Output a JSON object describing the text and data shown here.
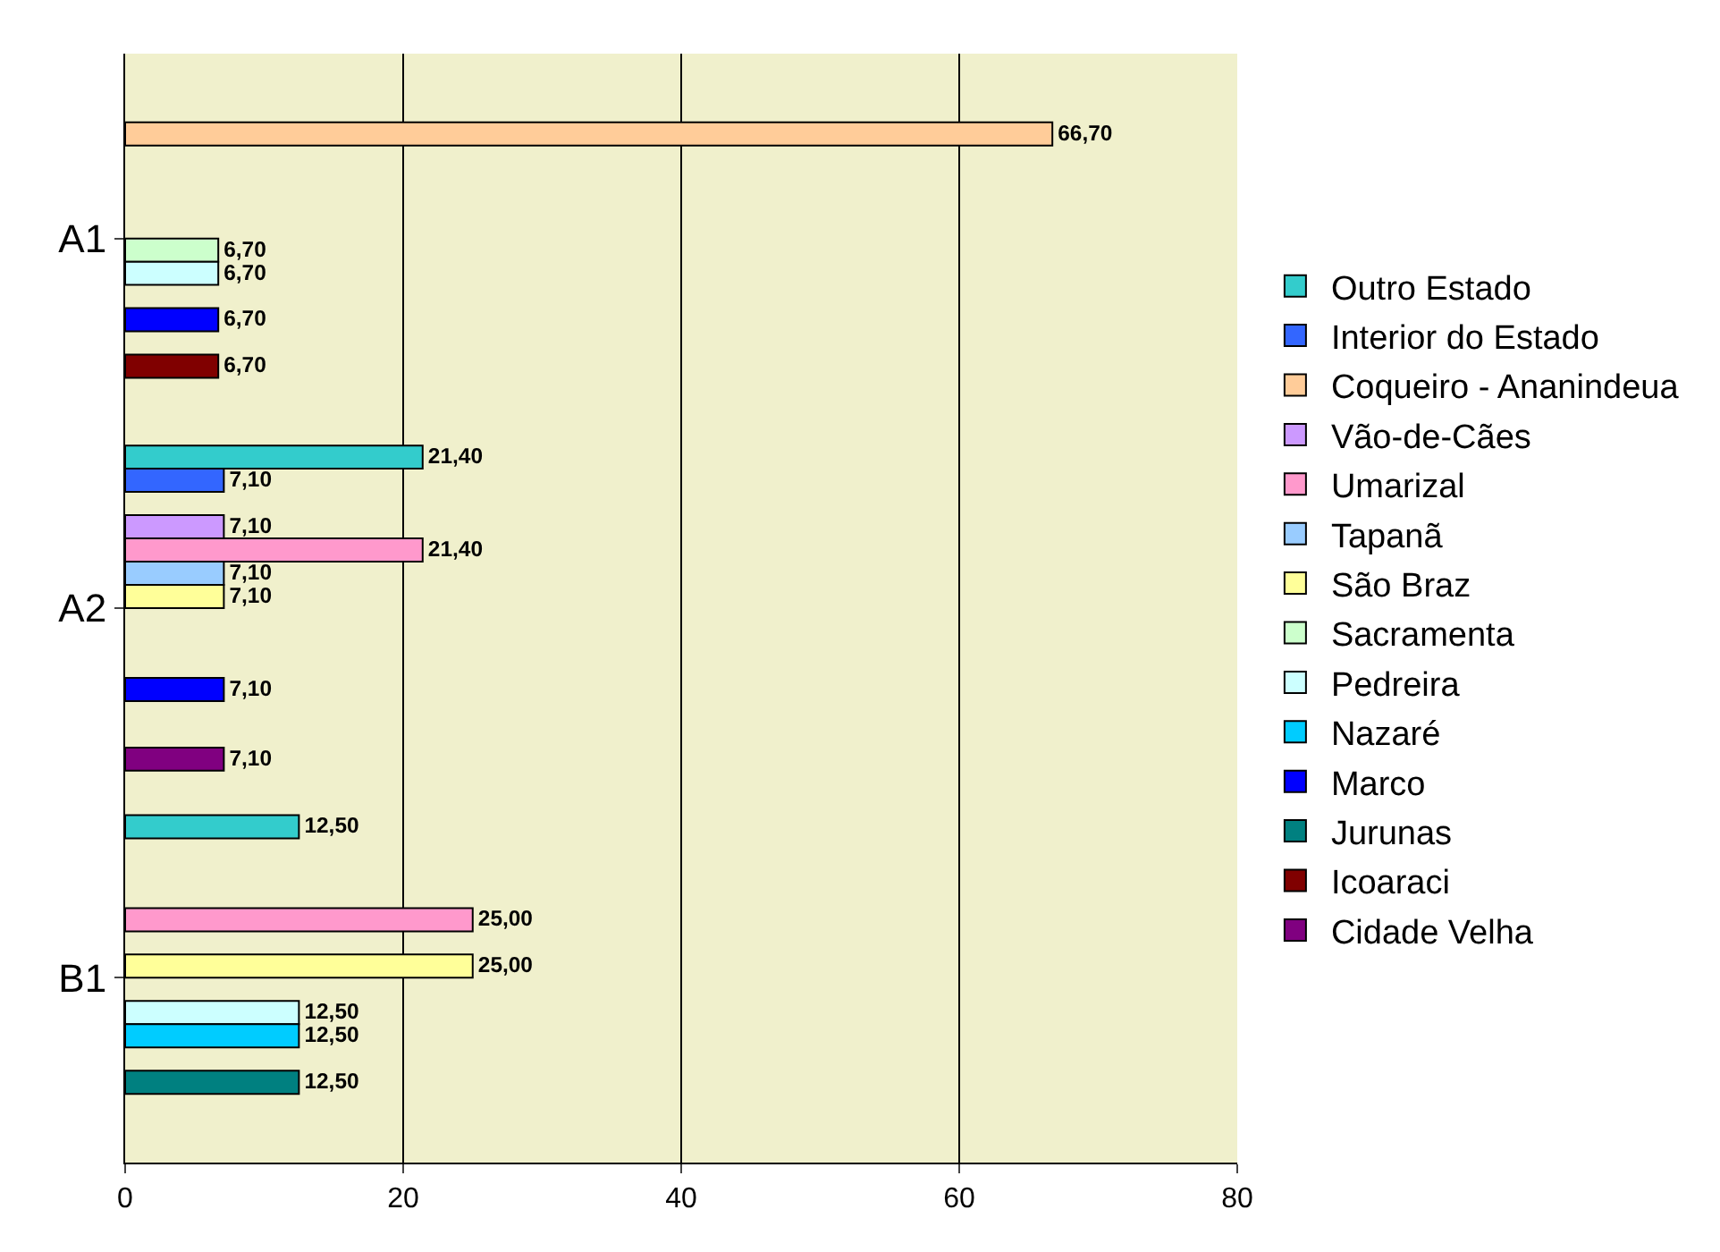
{
  "chart_data": {
    "type": "bar",
    "orientation": "horizontal",
    "categories": [
      "A1",
      "A2",
      "B1"
    ],
    "xlim": [
      0,
      80
    ],
    "xticks": [
      0,
      20,
      40,
      60,
      80
    ],
    "grid": "x",
    "legend": "right",
    "series": [
      {
        "name": "Outro Estado",
        "color": "#33cccc",
        "values": [
          null,
          21.4,
          12.5
        ],
        "value_labels": [
          null,
          "21,40",
          "12,50"
        ]
      },
      {
        "name": "Interior do Estado",
        "color": "#3366ff",
        "values": [
          null,
          7.1,
          null
        ],
        "value_labels": [
          null,
          "7,10",
          null
        ]
      },
      {
        "name": "Coqueiro - Ananindeua",
        "color": "#ffcc99",
        "values": [
          66.7,
          null,
          null
        ],
        "value_labels": [
          "66,70",
          null,
          null
        ]
      },
      {
        "name": "Vão-de-Cães",
        "color": "#cc99ff",
        "values": [
          null,
          7.1,
          null
        ],
        "value_labels": [
          null,
          "7,10",
          null
        ]
      },
      {
        "name": "Umarizal",
        "color": "#ff99cc",
        "values": [
          null,
          21.4,
          25
        ],
        "value_labels": [
          null,
          "21,40",
          "25,00"
        ]
      },
      {
        "name": "Tapanã",
        "color": "#99ccff",
        "values": [
          null,
          7.1,
          null
        ],
        "value_labels": [
          null,
          "7,10",
          null
        ]
      },
      {
        "name": "São Braz",
        "color": "#ffff99",
        "values": [
          null,
          7.1,
          25
        ],
        "value_labels": [
          null,
          "7,10",
          "25,00"
        ]
      },
      {
        "name": "Sacramenta",
        "color": "#ccffcc",
        "values": [
          6.7,
          null,
          null
        ],
        "value_labels": [
          "6,70",
          null,
          null
        ]
      },
      {
        "name": "Pedreira",
        "color": "#ccffff",
        "values": [
          6.7,
          null,
          12.5
        ],
        "value_labels": [
          "6,70",
          null,
          "12,50"
        ]
      },
      {
        "name": "Nazaré",
        "color": "#00ccff",
        "values": [
          null,
          null,
          12.5
        ],
        "value_labels": [
          null,
          null,
          "12,50"
        ]
      },
      {
        "name": "Marco",
        "color": "#0000ff",
        "values": [
          6.7,
          7.1,
          null
        ],
        "value_labels": [
          "6,70",
          "7,10",
          null
        ]
      },
      {
        "name": "Jurunas",
        "color": "#008080",
        "values": [
          null,
          null,
          12.5
        ],
        "value_labels": [
          null,
          null,
          "12,50"
        ]
      },
      {
        "name": "Icoaraci",
        "color": "#800000",
        "values": [
          6.7,
          null,
          null
        ],
        "value_labels": [
          "6,70",
          null,
          null
        ]
      },
      {
        "name": "Cidade Velha",
        "color": "#800080",
        "values": [
          null,
          7.1,
          null
        ],
        "value_labels": [
          null,
          "7,10",
          null
        ]
      }
    ]
  }
}
